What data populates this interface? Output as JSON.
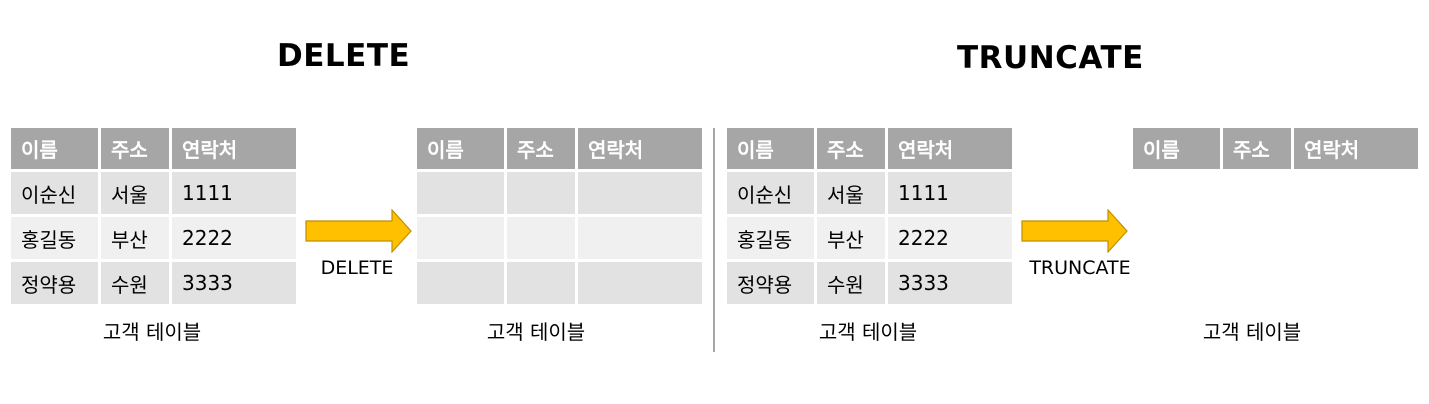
{
  "left": {
    "title": "DELETE",
    "before_table": {
      "headers": [
        "이름",
        "주소",
        "연락처"
      ],
      "rows": [
        [
          "이순신",
          "서울",
          "1111"
        ],
        [
          "홍길동",
          "부산",
          "2222"
        ],
        [
          "정약용",
          "수원",
          "3333"
        ]
      ],
      "caption": "고객 테이블"
    },
    "arrow_label": "DELETE",
    "after_table": {
      "headers": [
        "이름",
        "주소",
        "연락처"
      ],
      "rows": [
        [
          "",
          "",
          ""
        ],
        [
          "",
          "",
          ""
        ],
        [
          "",
          "",
          ""
        ]
      ],
      "caption": "고객 테이블"
    }
  },
  "right": {
    "title": "TRUNCATE",
    "before_table": {
      "headers": [
        "이름",
        "주소",
        "연락처"
      ],
      "rows": [
        [
          "이순신",
          "서울",
          "1111"
        ],
        [
          "홍길동",
          "부산",
          "2222"
        ],
        [
          "정약용",
          "수원",
          "3333"
        ]
      ],
      "caption": "고객 테이블"
    },
    "arrow_label": "TRUNCATE",
    "after_table": {
      "headers": [
        "이름",
        "주소",
        "연락처"
      ],
      "rows": [],
      "caption": "고객 테이블"
    }
  },
  "colors": {
    "header_bg": "#a6a6a6",
    "row_dark": "#e2e2e2",
    "row_light": "#f0f0f0",
    "arrow_fill": "#ffc000",
    "arrow_stroke": "#bf9000",
    "divider": "#a6a6a6"
  }
}
